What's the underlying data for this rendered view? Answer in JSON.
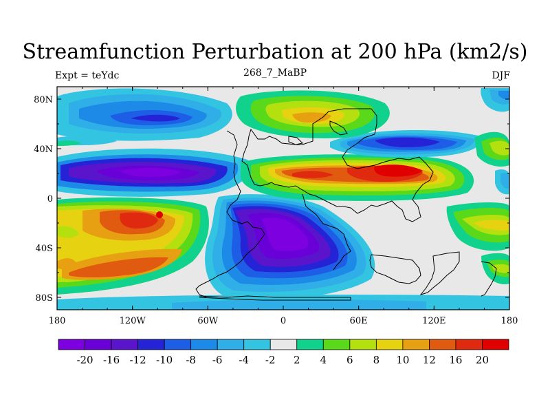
{
  "title": "Streamfunction Perturbation at 200 hPa (km2/s)",
  "left_label": "Expt = teYdc",
  "center_label": "268_7_MaBP",
  "right_label": "DJF",
  "x_ticks": [
    "180",
    "120W",
    "60W",
    "0",
    "60E",
    "120E",
    "180"
  ],
  "y_ticks": [
    "80N",
    "40N",
    "0",
    "40S",
    "80S"
  ],
  "colorbar": {
    "labels": [
      "-20",
      "-16",
      "-12",
      "-10",
      "-8",
      "-6",
      "-4",
      "-2",
      "2",
      "4",
      "6",
      "8",
      "10",
      "12",
      "16",
      "20"
    ],
    "colors": [
      "#7d00e0",
      "#6a00d8",
      "#5a14cc",
      "#2424d6",
      "#1e5ee6",
      "#1e8ae8",
      "#30aee8",
      "#32c4e0",
      "#e8e8e8",
      "#10d28c",
      "#5ad81a",
      "#b4e010",
      "#e6d210",
      "#e6a012",
      "#e05a10",
      "#e02a10",
      "#e00000"
    ]
  },
  "colors": {
    "neg20": "#7d00e0",
    "neg16": "#6a00d8",
    "neg12": "#5a14cc",
    "neg10": "#2424d6",
    "neg8": "#1e5ee6",
    "neg6": "#1e8ae8",
    "neg4": "#30aee8",
    "neg2": "#32c4e0",
    "zero": "#e8e8e8",
    "pos2": "#10d28c",
    "pos4": "#5ad81a",
    "pos6": "#b4e010",
    "pos8": "#e6d210",
    "pos10": "#e6a012",
    "pos12": "#e05a10",
    "pos16": "#e02a10",
    "pos20": "#e00000"
  }
}
